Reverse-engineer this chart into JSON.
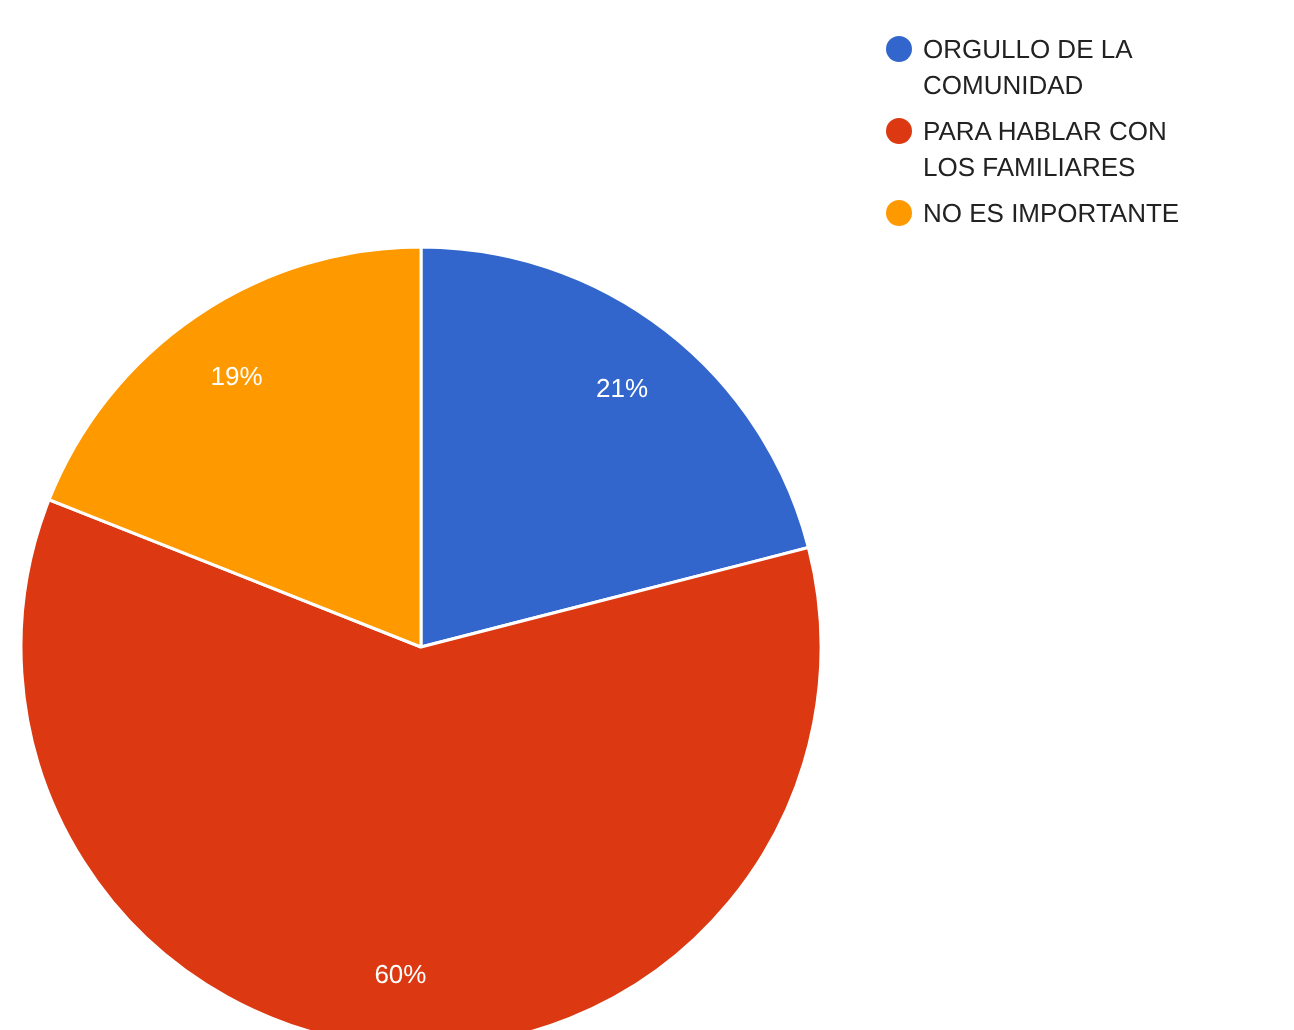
{
  "chart_data": {
    "type": "pie",
    "categories": [
      "ORGULLO DE LA COMUNIDAD",
      "PARA HABLAR CON LOS FAMILIARES",
      "NO ES IMPORTANTE"
    ],
    "values": [
      21,
      60,
      19
    ],
    "colors": [
      "#3366cc",
      "#dc3912",
      "#ff9900"
    ],
    "value_labels": [
      "21%",
      "60%",
      "19%"
    ],
    "legend": "top right"
  }
}
